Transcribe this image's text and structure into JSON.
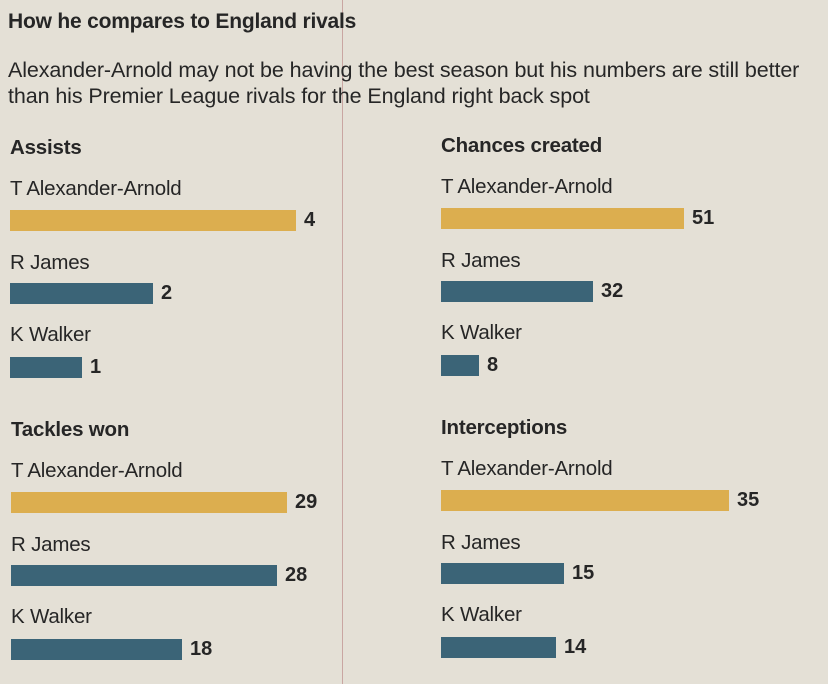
{
  "title": "How he compares to England rivals",
  "subtitle": "Alexander-Arnold may not be having the best season but his numbers are still better than his Premier League rivals for the England right back spot",
  "colors": {
    "highlight": "#dcae4f",
    "others": "#3b6477"
  },
  "chart_data": [
    {
      "type": "bar",
      "title": "Assists",
      "categories": [
        "T Alexander-Arnold",
        "R James",
        "K Walker"
      ],
      "values": [
        4,
        2,
        1
      ]
    },
    {
      "type": "bar",
      "title": "Chances created",
      "categories": [
        "T Alexander-Arnold",
        "R James",
        "K Walker"
      ],
      "values": [
        51,
        32,
        8
      ]
    },
    {
      "type": "bar",
      "title": "Tackles won",
      "categories": [
        "T Alexander-Arnold",
        "R James",
        "K Walker"
      ],
      "values": [
        29,
        28,
        18
      ]
    },
    {
      "type": "bar",
      "title": "Interceptions",
      "categories": [
        "T Alexander-Arnold",
        "R James",
        "K Walker"
      ],
      "values": [
        35,
        15,
        14
      ]
    }
  ]
}
